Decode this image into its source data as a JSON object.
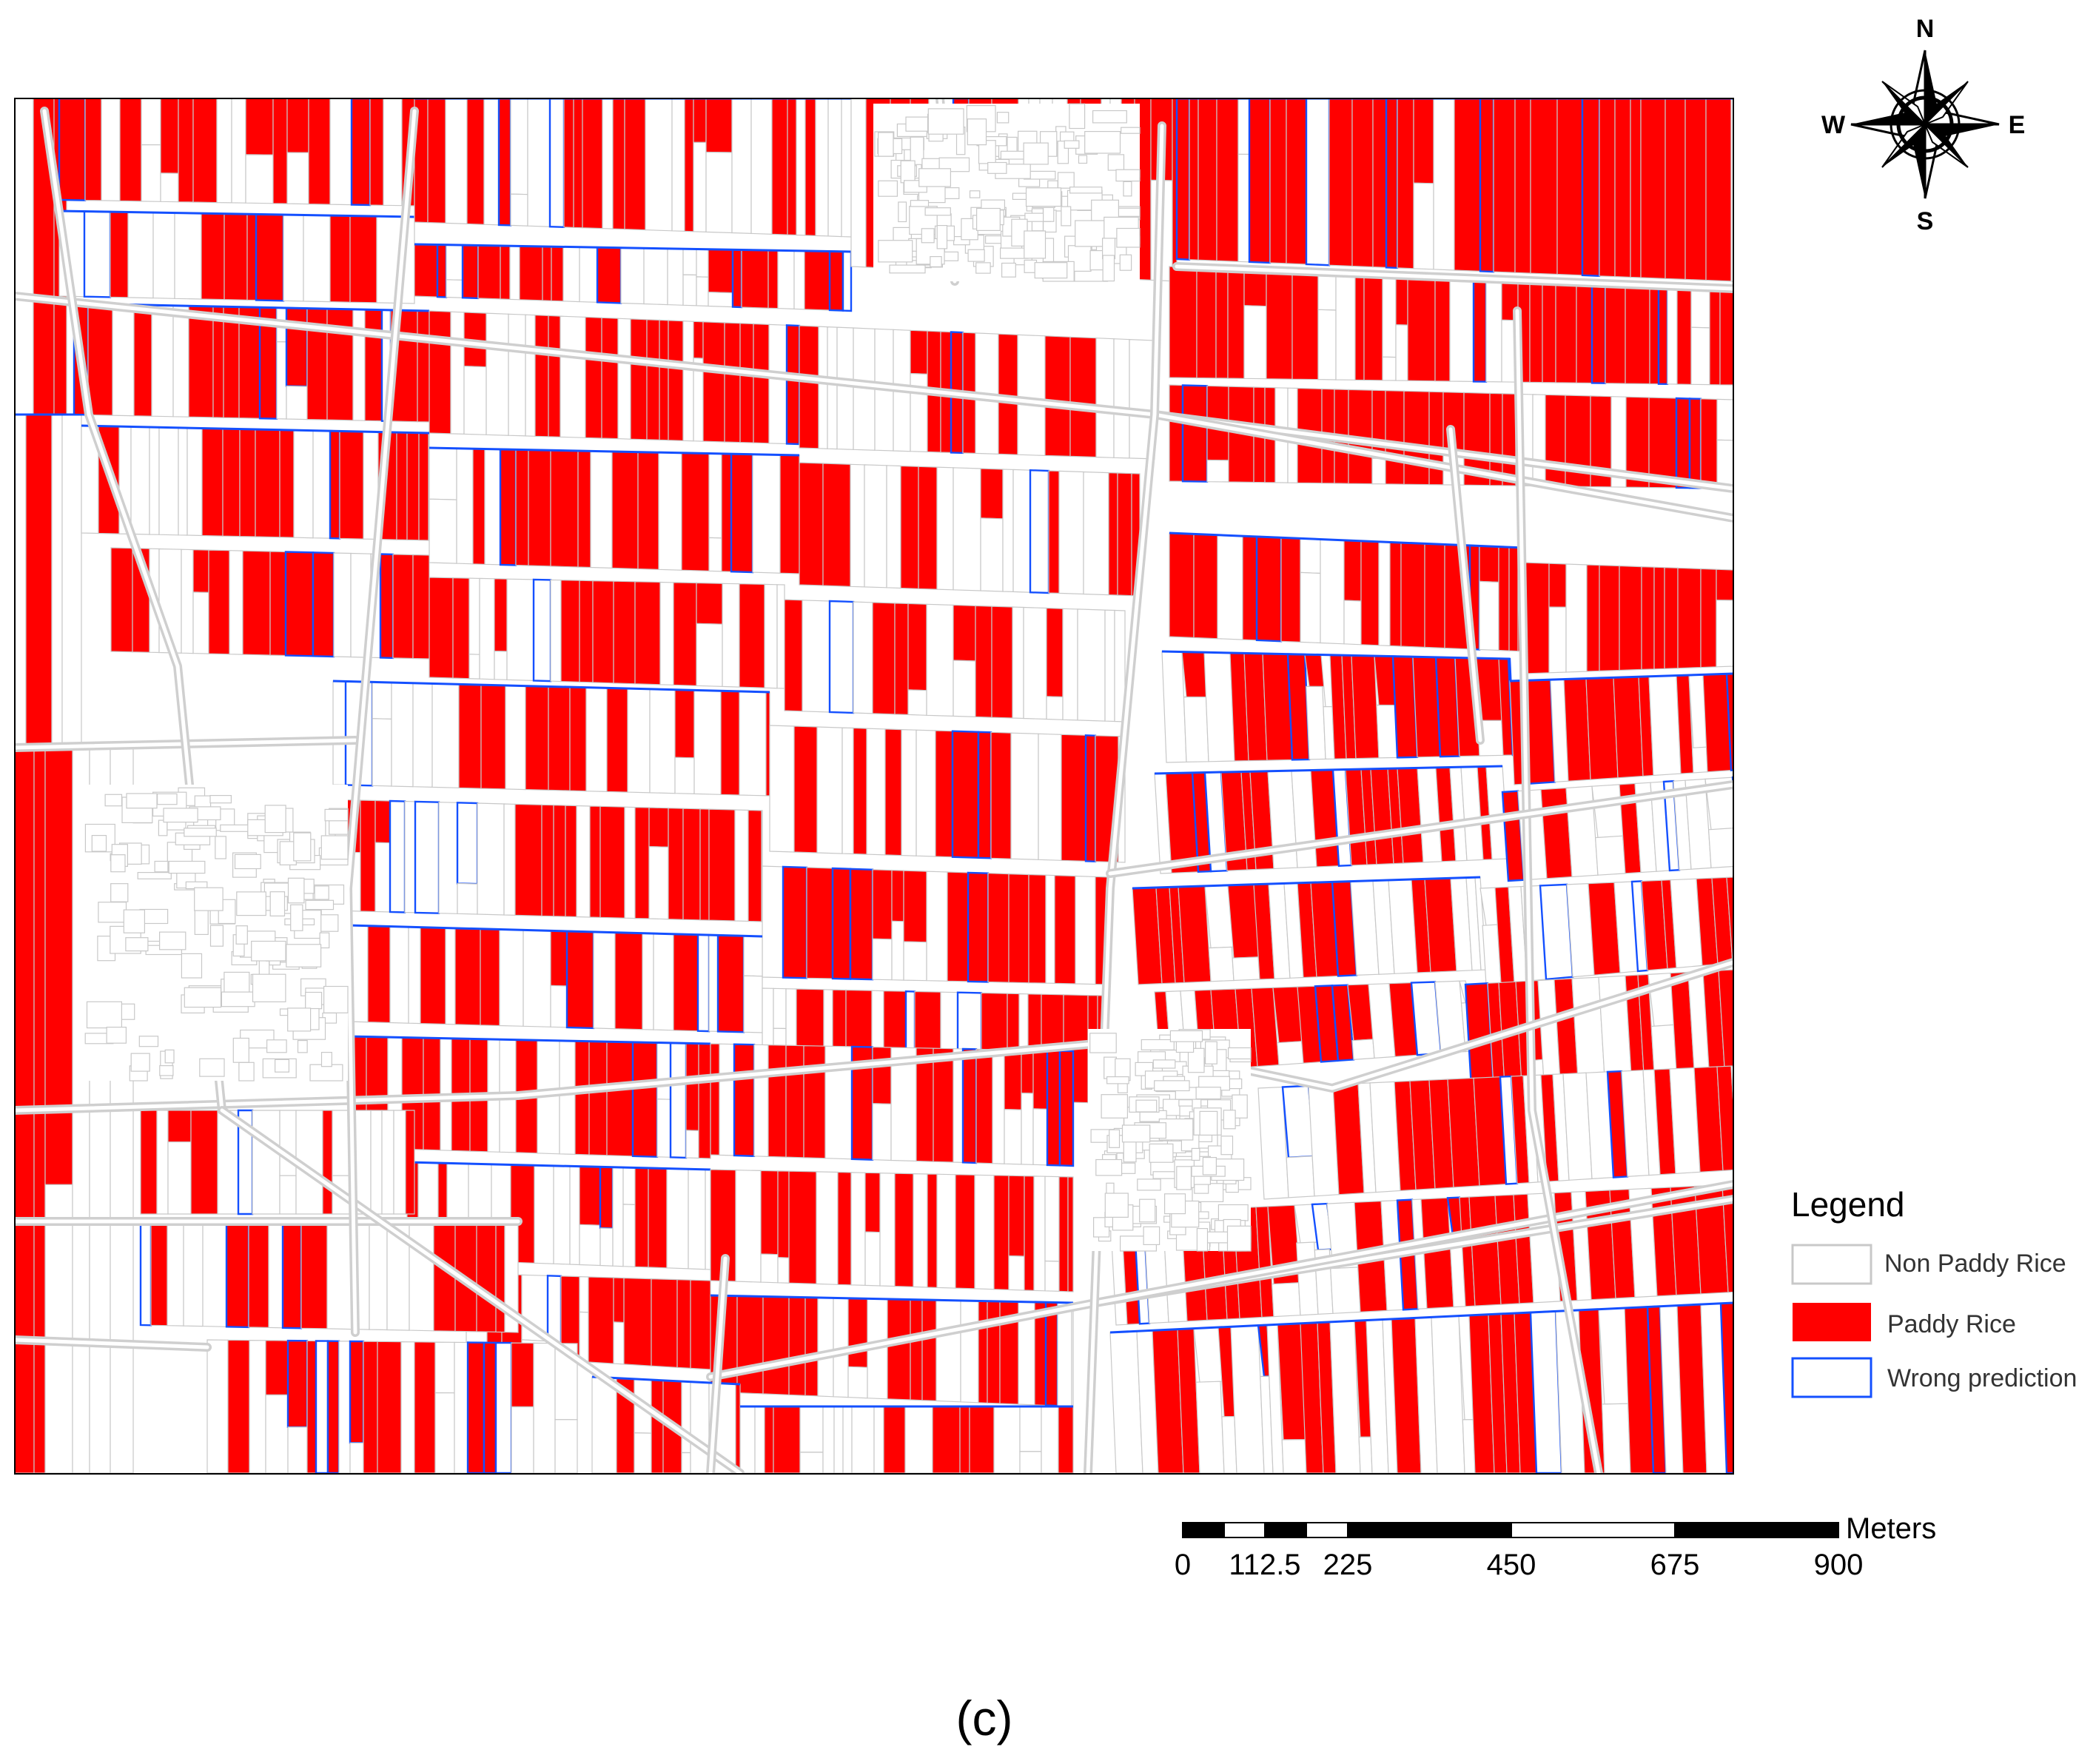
{
  "colors": {
    "paddy": "#ff0000",
    "non_paddy": "#ffffff",
    "parcel_outline": "#c8c8c8",
    "road": "#cfcfcf",
    "wrong": "#1450ff",
    "frame": "#000000"
  },
  "compass": {
    "n": "N",
    "s": "S",
    "e": "E",
    "w": "W"
  },
  "legend": {
    "title": "Legend",
    "items": [
      {
        "label": "Non Paddy Rice",
        "swatch": "non_paddy"
      },
      {
        "label": "Paddy Rice",
        "swatch": "paddy"
      },
      {
        "label": "Wrong prediction",
        "swatch": "wrong"
      }
    ]
  },
  "scale_bar": {
    "unit": "Meters",
    "ticks": [
      "0",
      "112.5",
      "225",
      "450",
      "675",
      "900"
    ]
  },
  "caption": "(c)"
}
